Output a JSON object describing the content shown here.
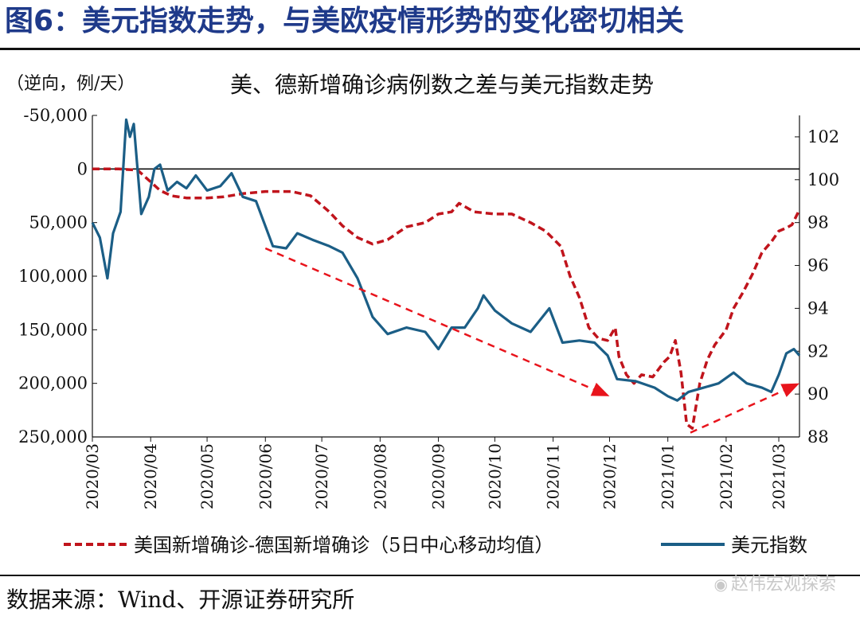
{
  "figure": {
    "title": "图6：美元指数走势，与美欧疫情形势的变化密切相关",
    "source": "数据来源：Wind、开源证券研究所",
    "watermark": "赵伟宏观探索",
    "watermark_icon": "wechat-icon"
  },
  "colors": {
    "title": "#1f3a8a",
    "cases_line": "#c0141c",
    "dxy_line": "#1b5e86",
    "arrow": "#e8141c"
  },
  "chart_data": {
    "type": "line",
    "title": "美、德新增确诊病例数之差与美元指数走势",
    "left_axis_label": "（逆向，例/天）",
    "left_axis": {
      "inverted": true,
      "range": [
        -50000,
        250000
      ],
      "ticks": [
        -50000,
        0,
        50000,
        100000,
        150000,
        200000,
        250000
      ],
      "tick_labels": [
        "-50,000",
        "0",
        "50,000",
        "100,000",
        "150,000",
        "200,000",
        "250,000"
      ]
    },
    "right_axis": {
      "range": [
        88,
        103
      ],
      "ticks": [
        88,
        90,
        92,
        94,
        96,
        98,
        100,
        102
      ],
      "tick_labels": [
        "88",
        "90",
        "92",
        "94",
        "96",
        "98",
        "100",
        "102"
      ]
    },
    "x_axis": {
      "start": "2020-03-01",
      "end": "2021-03-12",
      "tick_labels": [
        "2020/03",
        "2020/04",
        "2020/05",
        "2020/06",
        "2020/07",
        "2020/08",
        "2020/09",
        "2020/10",
        "2020/11",
        "2020/12",
        "2021/01",
        "2021/02",
        "2021/03"
      ]
    },
    "series": [
      {
        "name": "美国新增确诊-德国新增确诊（5日中心移动均值）",
        "axis": "left",
        "style": "dashed",
        "points": [
          [
            "2020-03-01",
            0
          ],
          [
            "2020-03-15",
            0
          ],
          [
            "2020-03-25",
            1000
          ],
          [
            "2020-04-01",
            12000
          ],
          [
            "2020-04-06",
            20000
          ],
          [
            "2020-04-12",
            25000
          ],
          [
            "2020-04-20",
            27000
          ],
          [
            "2020-05-01",
            27000
          ],
          [
            "2020-05-10",
            26000
          ],
          [
            "2020-05-20",
            23000
          ],
          [
            "2020-06-01",
            21000
          ],
          [
            "2020-06-15",
            21000
          ],
          [
            "2020-06-25",
            25000
          ],
          [
            "2020-07-05",
            40000
          ],
          [
            "2020-07-12",
            53000
          ],
          [
            "2020-07-20",
            64000
          ],
          [
            "2020-07-28",
            70000
          ],
          [
            "2020-08-05",
            66000
          ],
          [
            "2020-08-15",
            54000
          ],
          [
            "2020-08-25",
            50000
          ],
          [
            "2020-09-01",
            42000
          ],
          [
            "2020-09-08",
            40000
          ],
          [
            "2020-09-12",
            32000
          ],
          [
            "2020-09-20",
            40000
          ],
          [
            "2020-10-01",
            42000
          ],
          [
            "2020-10-10",
            42000
          ],
          [
            "2020-10-20",
            50000
          ],
          [
            "2020-10-28",
            58000
          ],
          [
            "2020-11-05",
            72000
          ],
          [
            "2020-11-10",
            100000
          ],
          [
            "2020-11-15",
            120000
          ],
          [
            "2020-11-20",
            148000
          ],
          [
            "2020-11-25",
            158000
          ],
          [
            "2020-11-30",
            160000
          ],
          [
            "2020-12-04",
            148000
          ],
          [
            "2020-12-06",
            175000
          ],
          [
            "2020-12-10",
            192000
          ],
          [
            "2020-12-14",
            200000
          ],
          [
            "2020-12-18",
            192000
          ],
          [
            "2020-12-24",
            194000
          ],
          [
            "2020-12-30",
            180000
          ],
          [
            "2021-01-02",
            175000
          ],
          [
            "2021-01-05",
            160000
          ],
          [
            "2021-01-08",
            190000
          ],
          [
            "2021-01-11",
            238000
          ],
          [
            "2021-01-14",
            242000
          ],
          [
            "2021-01-18",
            200000
          ],
          [
            "2021-01-22",
            178000
          ],
          [
            "2021-01-26",
            164000
          ],
          [
            "2021-02-01",
            150000
          ],
          [
            "2021-02-05",
            130000
          ],
          [
            "2021-02-10",
            115000
          ],
          [
            "2021-02-15",
            98000
          ],
          [
            "2021-02-20",
            78000
          ],
          [
            "2021-02-25",
            68000
          ],
          [
            "2021-03-01",
            58000
          ],
          [
            "2021-03-05",
            55000
          ],
          [
            "2021-03-08",
            52000
          ],
          [
            "2021-03-12",
            38000
          ]
        ]
      },
      {
        "name": "美元指数",
        "axis": "right",
        "style": "solid",
        "points": [
          [
            "2020-03-01",
            98.0
          ],
          [
            "2020-03-05",
            97.3
          ],
          [
            "2020-03-09",
            95.4
          ],
          [
            "2020-03-12",
            97.5
          ],
          [
            "2020-03-16",
            98.5
          ],
          [
            "2020-03-19",
            102.8
          ],
          [
            "2020-03-21",
            102.0
          ],
          [
            "2020-03-23",
            102.6
          ],
          [
            "2020-03-27",
            98.4
          ],
          [
            "2020-03-31",
            99.2
          ],
          [
            "2020-04-03",
            100.5
          ],
          [
            "2020-04-06",
            100.7
          ],
          [
            "2020-04-10",
            99.5
          ],
          [
            "2020-04-15",
            99.9
          ],
          [
            "2020-04-20",
            99.6
          ],
          [
            "2020-04-25",
            100.2
          ],
          [
            "2020-05-01",
            99.5
          ],
          [
            "2020-05-08",
            99.7
          ],
          [
            "2020-05-14",
            100.3
          ],
          [
            "2020-05-20",
            99.2
          ],
          [
            "2020-05-27",
            99.0
          ],
          [
            "2020-06-05",
            96.9
          ],
          [
            "2020-06-12",
            96.8
          ],
          [
            "2020-06-18",
            97.5
          ],
          [
            "2020-06-26",
            97.2
          ],
          [
            "2020-07-05",
            96.9
          ],
          [
            "2020-07-12",
            96.6
          ],
          [
            "2020-07-20",
            95.4
          ],
          [
            "2020-07-28",
            93.6
          ],
          [
            "2020-08-05",
            92.8
          ],
          [
            "2020-08-15",
            93.1
          ],
          [
            "2020-08-25",
            92.9
          ],
          [
            "2020-09-01",
            92.1
          ],
          [
            "2020-09-08",
            93.1
          ],
          [
            "2020-09-15",
            93.1
          ],
          [
            "2020-09-22",
            94.0
          ],
          [
            "2020-09-25",
            94.6
          ],
          [
            "2020-10-01",
            93.9
          ],
          [
            "2020-10-10",
            93.3
          ],
          [
            "2020-10-20",
            92.9
          ],
          [
            "2020-10-30",
            94.0
          ],
          [
            "2020-11-06",
            92.4
          ],
          [
            "2020-11-15",
            92.5
          ],
          [
            "2020-11-23",
            92.4
          ],
          [
            "2020-11-30",
            91.8
          ],
          [
            "2020-12-05",
            90.7
          ],
          [
            "2020-12-15",
            90.6
          ],
          [
            "2020-12-25",
            90.3
          ],
          [
            "2021-01-01",
            89.9
          ],
          [
            "2021-01-06",
            89.7
          ],
          [
            "2021-01-12",
            90.1
          ],
          [
            "2021-01-20",
            90.3
          ],
          [
            "2021-01-28",
            90.5
          ],
          [
            "2021-02-05",
            91.0
          ],
          [
            "2021-02-12",
            90.5
          ],
          [
            "2021-02-20",
            90.3
          ],
          [
            "2021-02-25",
            90.1
          ],
          [
            "2021-03-01",
            90.9
          ],
          [
            "2021-03-05",
            91.9
          ],
          [
            "2021-03-09",
            92.1
          ],
          [
            "2021-03-12",
            91.8
          ]
        ]
      }
    ],
    "annotations": [
      {
        "type": "dashed-arrow",
        "direction": "down-right",
        "from": [
          "2020-06-01",
          96.8
        ],
        "to": [
          "2020-12-01",
          89.9
        ]
      },
      {
        "type": "dashed-arrow",
        "direction": "up-right",
        "from": [
          "2021-01-13",
          88.2
        ],
        "to": [
          "2021-03-12",
          90.5
        ]
      }
    ],
    "legend": {
      "position": "bottom",
      "entries": [
        "美国新增确诊-德国新增确诊（5日中心移动均值）",
        "美元指数"
      ]
    }
  }
}
